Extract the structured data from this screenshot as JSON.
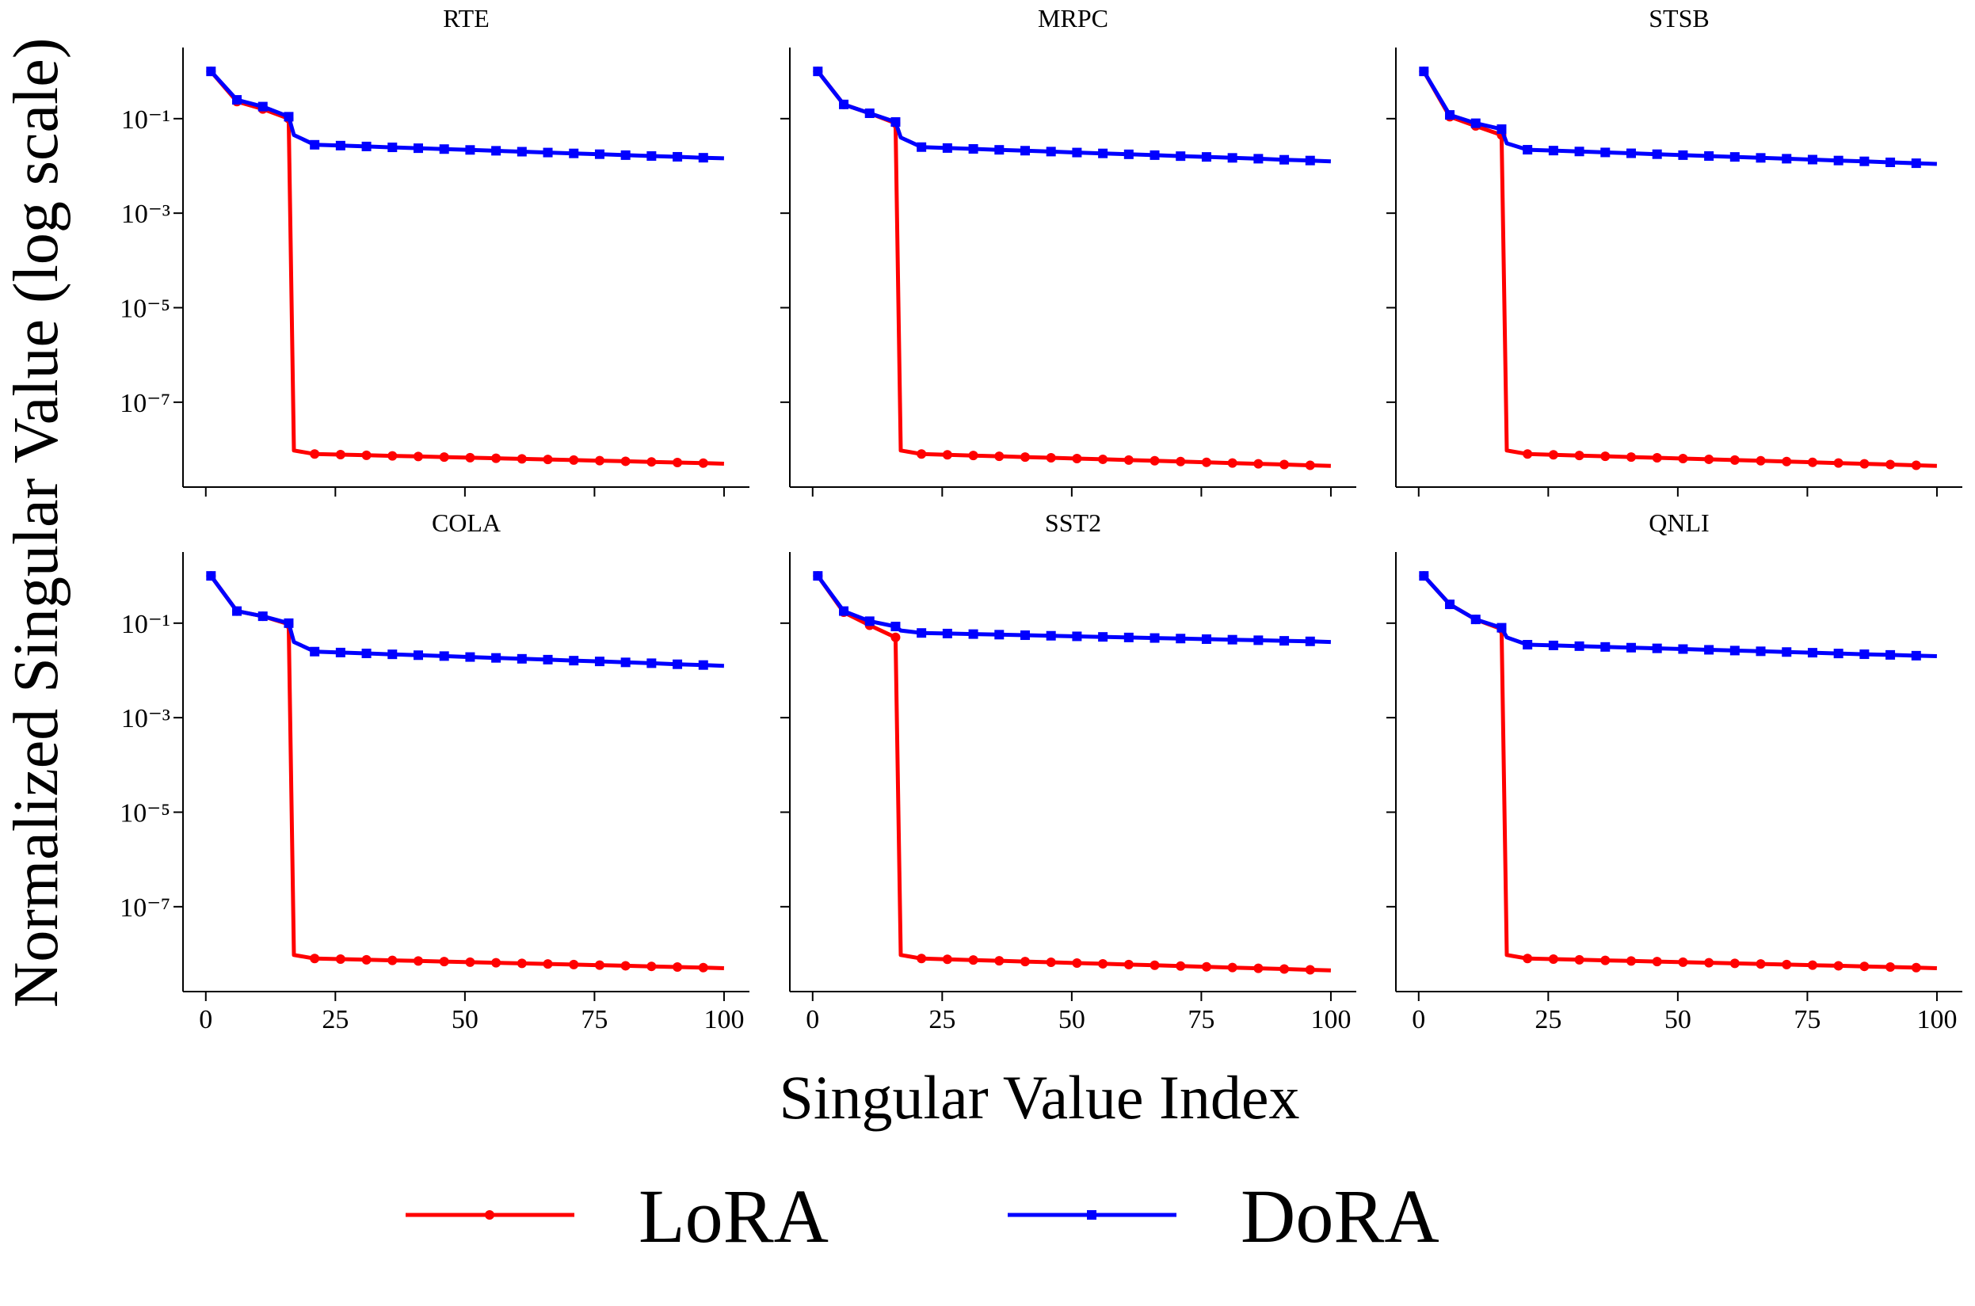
{
  "chart_data": {
    "type": "line",
    "ylabel": "Normalized Singular Value (log scale)",
    "xlabel": "Singular Value Index",
    "yscale": "log",
    "ylim": [
      1.6e-09,
      3.2
    ],
    "xlim": [
      -4.4,
      104.9
    ],
    "xticks": [
      0,
      25,
      50,
      75,
      100
    ],
    "xtick_labels": [
      "0",
      "25",
      "50",
      "75",
      "100"
    ],
    "yticks": [
      0.1,
      0.001,
      1e-05,
      1e-07
    ],
    "ytick_labels": [
      "10⁻¹",
      "10⁻³",
      "10⁻⁵",
      "10⁻⁷"
    ],
    "grid": false,
    "legend": {
      "placement": "bottom-center",
      "entries": [
        {
          "name": "LoRA",
          "color": "#ff0000",
          "marker": "circle"
        },
        {
          "name": "DoRA",
          "color": "#0000ff",
          "marker": "square"
        }
      ]
    },
    "x": [
      1,
      6,
      11,
      16,
      17,
      21,
      26,
      31,
      36,
      41,
      46,
      51,
      56,
      61,
      66,
      71,
      76,
      81,
      86,
      91,
      96,
      100
    ],
    "panels": [
      {
        "title": "RTE",
        "series": [
          {
            "name": "LoRA",
            "values": [
              1,
              0.23,
              0.16,
              0.1,
              9.5e-09,
              8e-09,
              7.77e-09,
              7.54e-09,
              7.32e-09,
              7.11e-09,
              6.9e-09,
              6.7e-09,
              6.51e-09,
              6.32e-09,
              6.14e-09,
              5.96e-09,
              5.79e-09,
              5.62e-09,
              5.46e-09,
              5.3e-09,
              5.15e-09,
              5e-09
            ]
          },
          {
            "name": "DoRA",
            "values": [
              1,
              0.25,
              0.18,
              0.11,
              0.045,
              0.028,
              0.0269,
              0.0258,
              0.0247,
              0.0237,
              0.0227,
              0.0218,
              0.0209,
              0.02,
              0.0192,
              0.0184,
              0.0177,
              0.0169,
              0.0162,
              0.0156,
              0.0149,
              0.0145
            ]
          }
        ]
      },
      {
        "title": "MRPC",
        "series": [
          {
            "name": "LoRA",
            "values": [
              1,
              0.2,
              0.13,
              0.08,
              9.5e-09,
              8e-09,
              7.71e-09,
              7.44e-09,
              7.17e-09,
              6.91e-09,
              6.66e-09,
              6.42e-09,
              6.19e-09,
              5.97e-09,
              5.76e-09,
              5.55e-09,
              5.35e-09,
              5.16e-09,
              4.97e-09,
              4.8e-09,
              4.62e-09,
              4.5e-09
            ]
          },
          {
            "name": "DoRA",
            "values": [
              1,
              0.2,
              0.13,
              0.085,
              0.04,
              0.025,
              0.0239,
              0.0229,
              0.0219,
              0.021,
              0.0201,
              0.0192,
              0.0184,
              0.0176,
              0.0169,
              0.0161,
              0.0155,
              0.0148,
              0.0142,
              0.0135,
              0.013,
              0.0125
            ]
          }
        ]
      },
      {
        "title": "STSB",
        "series": [
          {
            "name": "LoRA",
            "values": [
              1,
              0.11,
              0.07,
              0.045,
              9.5e-09,
              8e-09,
              7.71e-09,
              7.44e-09,
              7.17e-09,
              6.91e-09,
              6.66e-09,
              6.42e-09,
              6.19e-09,
              5.97e-09,
              5.76e-09,
              5.55e-09,
              5.35e-09,
              5.16e-09,
              4.97e-09,
              4.8e-09,
              4.62e-09,
              4.5e-09
            ]
          },
          {
            "name": "DoRA",
            "values": [
              1,
              0.12,
              0.08,
              0.06,
              0.03,
              0.022,
              0.0211,
              0.0202,
              0.0193,
              0.0185,
              0.0177,
              0.0169,
              0.0162,
              0.0155,
              0.0148,
              0.0142,
              0.0136,
              0.013,
              0.0125,
              0.0119,
              0.0114,
              0.011
            ]
          }
        ]
      },
      {
        "title": "COLA",
        "series": [
          {
            "name": "LoRA",
            "values": [
              1,
              0.18,
              0.14,
              0.095,
              9.5e-09,
              8e-09,
              7.77e-09,
              7.54e-09,
              7.32e-09,
              7.11e-09,
              6.9e-09,
              6.7e-09,
              6.51e-09,
              6.32e-09,
              6.14e-09,
              5.96e-09,
              5.79e-09,
              5.62e-09,
              5.46e-09,
              5.3e-09,
              5.15e-09,
              5e-09
            ]
          },
          {
            "name": "DoRA",
            "values": [
              1,
              0.18,
              0.14,
              0.1,
              0.04,
              0.025,
              0.0239,
              0.0229,
              0.0219,
              0.021,
              0.0201,
              0.0192,
              0.0184,
              0.0176,
              0.0169,
              0.0161,
              0.0155,
              0.0148,
              0.0142,
              0.0135,
              0.013,
              0.0125
            ]
          }
        ]
      },
      {
        "title": "SST2",
        "series": [
          {
            "name": "LoRA",
            "values": [
              1,
              0.17,
              0.09,
              0.05,
              9.5e-09,
              8e-09,
              7.71e-09,
              7.44e-09,
              7.17e-09,
              6.91e-09,
              6.66e-09,
              6.42e-09,
              6.19e-09,
              5.97e-09,
              5.76e-09,
              5.55e-09,
              5.35e-09,
              5.16e-09,
              4.97e-09,
              4.8e-09,
              4.62e-09,
              4.5e-09
            ]
          },
          {
            "name": "DoRA",
            "values": [
              1,
              0.18,
              0.11,
              0.085,
              0.07,
              0.062,
              0.0603,
              0.0587,
              0.0571,
              0.0556,
              0.0541,
              0.0526,
              0.0512,
              0.0498,
              0.0485,
              0.0472,
              0.0459,
              0.0447,
              0.0435,
              0.0423,
              0.0412,
              0.04
            ]
          }
        ]
      },
      {
        "title": "QNLI",
        "series": [
          {
            "name": "LoRA",
            "values": [
              1,
              0.25,
              0.12,
              0.075,
              9.5e-09,
              8e-09,
              7.77e-09,
              7.54e-09,
              7.32e-09,
              7.11e-09,
              6.9e-09,
              6.7e-09,
              6.51e-09,
              6.32e-09,
              6.14e-09,
              5.96e-09,
              5.79e-09,
              5.62e-09,
              5.46e-09,
              5.3e-09,
              5.15e-09,
              5e-09
            ]
          },
          {
            "name": "DoRA",
            "values": [
              1,
              0.25,
              0.12,
              0.08,
              0.05,
              0.035,
              0.0338,
              0.0326,
              0.0314,
              0.0303,
              0.0293,
              0.0283,
              0.0273,
              0.0263,
              0.0254,
              0.0245,
              0.0237,
              0.0228,
              0.022,
              0.0213,
              0.0205,
              0.02
            ]
          }
        ]
      }
    ]
  }
}
